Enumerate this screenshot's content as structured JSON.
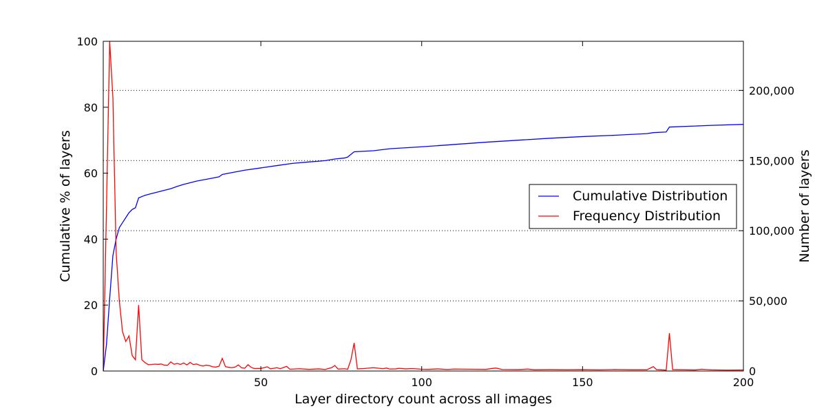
{
  "chart_data": {
    "type": "line",
    "xlabel": "Layer directory count across all images",
    "ylabel_left": "Cumulative % of layers",
    "ylabel_right": "Number of layers",
    "xlim": [
      1,
      200
    ],
    "ylim_left": [
      0,
      100
    ],
    "ylim_right": [
      0,
      235000
    ],
    "x_ticks": [
      50,
      100,
      150,
      200
    ],
    "y_left_ticks": [
      0,
      20,
      40,
      60,
      80,
      100
    ],
    "y_right_ticks": [
      0,
      50000,
      100000,
      150000,
      200000
    ],
    "y_right_tick_labels": [
      "0",
      "50,000",
      "100,000",
      "150,000",
      "200,000"
    ],
    "grid": "horizontal dotted at right-axis ticks",
    "legend_position": "center-right",
    "series": [
      {
        "name": "Cumulative Distribution",
        "axis": "left",
        "color": "#0000ff",
        "points": [
          [
            1,
            0
          ],
          [
            2,
            8
          ],
          [
            3,
            22
          ],
          [
            4,
            35
          ],
          [
            5,
            40
          ],
          [
            6,
            43.5
          ],
          [
            7,
            45
          ],
          [
            8,
            46.5
          ],
          [
            9,
            48
          ],
          [
            10,
            49
          ],
          [
            11,
            49.5
          ],
          [
            12,
            52.5
          ],
          [
            14,
            53.3
          ],
          [
            16,
            53.8
          ],
          [
            18,
            54.3
          ],
          [
            20,
            54.8
          ],
          [
            22,
            55.3
          ],
          [
            24,
            56
          ],
          [
            26,
            56.6
          ],
          [
            28,
            57.1
          ],
          [
            30,
            57.6
          ],
          [
            35,
            58.5
          ],
          [
            37,
            58.9
          ],
          [
            38,
            59.6
          ],
          [
            40,
            60
          ],
          [
            45,
            60.9
          ],
          [
            50,
            61.6
          ],
          [
            55,
            62.3
          ],
          [
            60,
            63
          ],
          [
            65,
            63.4
          ],
          [
            70,
            63.8
          ],
          [
            73,
            64.3
          ],
          [
            76,
            64.6
          ],
          [
            77,
            64.9
          ],
          [
            79,
            66.5
          ],
          [
            85,
            66.8
          ],
          [
            90,
            67.4
          ],
          [
            100,
            68
          ],
          [
            110,
            68.7
          ],
          [
            120,
            69.4
          ],
          [
            130,
            70
          ],
          [
            140,
            70.6
          ],
          [
            150,
            71.1
          ],
          [
            160,
            71.5
          ],
          [
            170,
            72
          ],
          [
            172,
            72.3
          ],
          [
            176,
            72.5
          ],
          [
            177,
            74
          ],
          [
            185,
            74.3
          ],
          [
            190,
            74.5
          ],
          [
            200,
            74.8
          ]
        ]
      },
      {
        "name": "Frequency Distribution",
        "axis": "right",
        "color": "#ff0000",
        "points": [
          [
            1,
            0
          ],
          [
            2,
            115000
          ],
          [
            3,
            235000
          ],
          [
            4,
            195000
          ],
          [
            5,
            85000
          ],
          [
            6,
            50000
          ],
          [
            7,
            28000
          ],
          [
            8,
            21000
          ],
          [
            9,
            25000
          ],
          [
            10,
            11000
          ],
          [
            11,
            8000
          ],
          [
            12,
            47000
          ],
          [
            13,
            8000
          ],
          [
            14,
            6000
          ],
          [
            15,
            4500
          ],
          [
            16,
            4600
          ],
          [
            17,
            4900
          ],
          [
            18,
            4700
          ],
          [
            19,
            5000
          ],
          [
            20,
            4200
          ],
          [
            21,
            4100
          ],
          [
            22,
            6500
          ],
          [
            23,
            4800
          ],
          [
            24,
            5400
          ],
          [
            25,
            4700
          ],
          [
            26,
            5700
          ],
          [
            27,
            4300
          ],
          [
            28,
            6100
          ],
          [
            29,
            4600
          ],
          [
            30,
            5000
          ],
          [
            31,
            4100
          ],
          [
            32,
            3500
          ],
          [
            33,
            4200
          ],
          [
            34,
            3800
          ],
          [
            35,
            3000
          ],
          [
            36,
            2800
          ],
          [
            37,
            3400
          ],
          [
            38,
            9000
          ],
          [
            39,
            3100
          ],
          [
            40,
            2600
          ],
          [
            41,
            2400
          ],
          [
            42,
            2800
          ],
          [
            43,
            4300
          ],
          [
            44,
            2300
          ],
          [
            45,
            2000
          ],
          [
            46,
            4500
          ],
          [
            47,
            2600
          ],
          [
            48,
            1700
          ],
          [
            50,
            1800
          ],
          [
            52,
            3000
          ],
          [
            53,
            1500
          ],
          [
            55,
            2400
          ],
          [
            56,
            1600
          ],
          [
            58,
            3300
          ],
          [
            59,
            1300
          ],
          [
            62,
            1600
          ],
          [
            65,
            1200
          ],
          [
            68,
            1500
          ],
          [
            70,
            1100
          ],
          [
            72,
            2400
          ],
          [
            73,
            3900
          ],
          [
            74,
            1400
          ],
          [
            76,
            1600
          ],
          [
            77,
            1300
          ],
          [
            78,
            8000
          ],
          [
            79,
            20000
          ],
          [
            80,
            1500
          ],
          [
            82,
            1700
          ],
          [
            85,
            2400
          ],
          [
            88,
            1600
          ],
          [
            89,
            2100
          ],
          [
            90,
            1400
          ],
          [
            92,
            1500
          ],
          [
            93,
            1900
          ],
          [
            95,
            1500
          ],
          [
            97,
            1700
          ],
          [
            100,
            1300
          ],
          [
            102,
            1200
          ],
          [
            105,
            1500
          ],
          [
            108,
            1100
          ],
          [
            110,
            1400
          ],
          [
            115,
            1300
          ],
          [
            120,
            1200
          ],
          [
            123,
            2100
          ],
          [
            125,
            1100
          ],
          [
            130,
            1000
          ],
          [
            133,
            1400
          ],
          [
            135,
            900
          ],
          [
            140,
            1000
          ],
          [
            145,
            900
          ],
          [
            150,
            1000
          ],
          [
            155,
            800
          ],
          [
            160,
            1100
          ],
          [
            165,
            900
          ],
          [
            170,
            900
          ],
          [
            172,
            3100
          ],
          [
            173,
            1000
          ],
          [
            176,
            600
          ],
          [
            177,
            27000
          ],
          [
            178,
            1000
          ],
          [
            185,
            700
          ],
          [
            187,
            1300
          ],
          [
            190,
            800
          ],
          [
            195,
            600
          ],
          [
            200,
            700
          ]
        ]
      }
    ]
  }
}
